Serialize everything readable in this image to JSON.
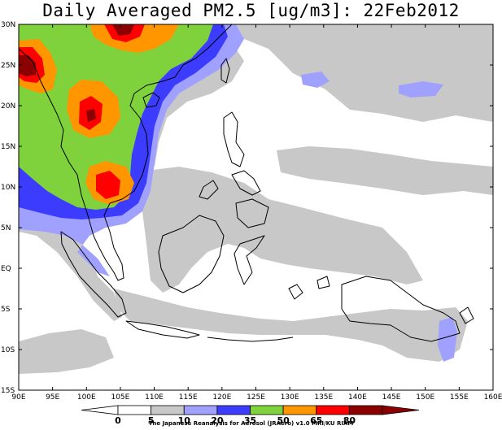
{
  "title": "Daily Averaged PM2.5 [ug/m3]: 22Feb2012",
  "credit": "The Japanese Reanalysis for Aerosol (JRAero) v1.0 MRI/KU RIAM",
  "map": {
    "lon_range": [
      90,
      160
    ],
    "lat_range": [
      -15,
      30
    ],
    "lon_ticks": [
      "90E",
      "95E",
      "100E",
      "105E",
      "110E",
      "115E",
      "120E",
      "125E",
      "130E",
      "135E",
      "140E",
      "145E",
      "150E",
      "155E",
      "160E"
    ],
    "lat_ticks": [
      "30N",
      "25N",
      "20N",
      "15N",
      "10N",
      "5N",
      "EQ",
      "5S",
      "10S",
      "15S"
    ]
  },
  "colorbar": {
    "levels": [
      "0",
      "5",
      "10",
      "20",
      "35",
      "50",
      "65",
      "80"
    ],
    "colors": [
      "#ffffff",
      "#c8c8c8",
      "#a0a0ff",
      "#3c3cff",
      "#7fd23c",
      "#ff9600",
      "#ff0000",
      "#8b0000"
    ]
  }
}
